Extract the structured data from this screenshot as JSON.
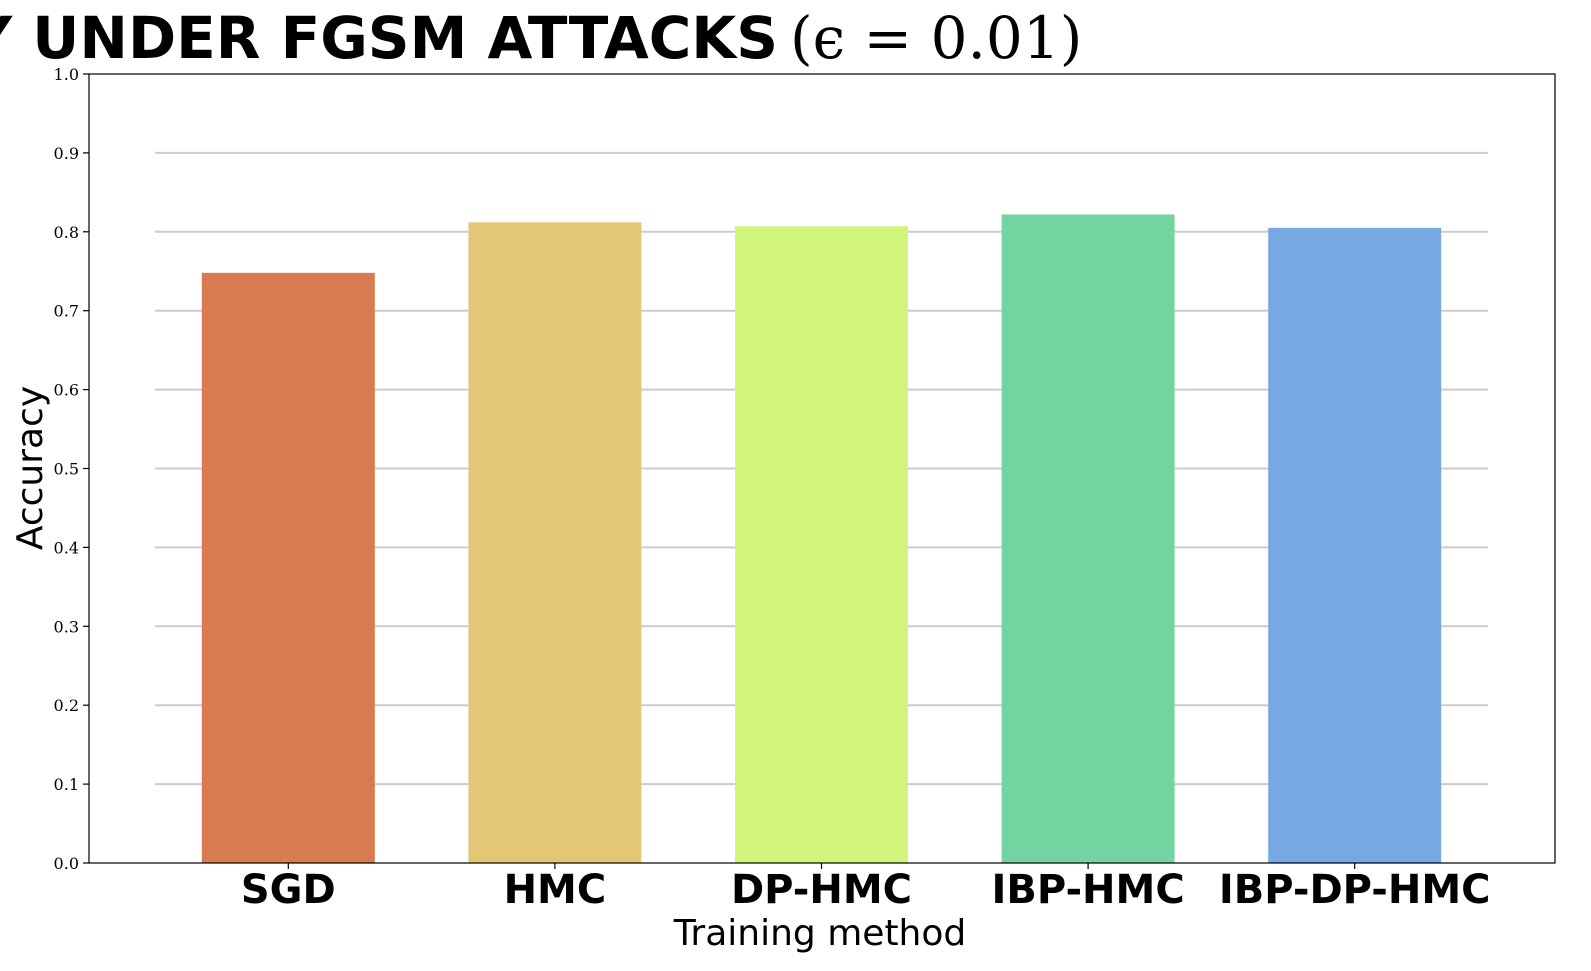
{
  "chart_data": {
    "type": "bar",
    "title": "ACCURACY UNDER FGSM ATTACKS",
    "title_math": "(ϵ = 0.01)",
    "xlabel": "Training method",
    "ylabel": "Accuracy",
    "categories": [
      "SGD",
      "HMC",
      "DP-HMC",
      "IBP-HMC",
      "IBP-DP-HMC"
    ],
    "values": [
      0.748,
      0.812,
      0.807,
      0.822,
      0.805
    ],
    "colors": [
      "#d97b50",
      "#e3c777",
      "#d1f47a",
      "#74d4a1",
      "#78a8e2"
    ],
    "ylim": [
      0,
      1.0
    ],
    "yticks": [
      "0.0",
      "0.1",
      "0.2",
      "0.3",
      "0.4",
      "0.5",
      "0.6",
      "0.7",
      "0.8",
      "0.9",
      "1.0"
    ],
    "grid": true,
    "legend": false
  }
}
